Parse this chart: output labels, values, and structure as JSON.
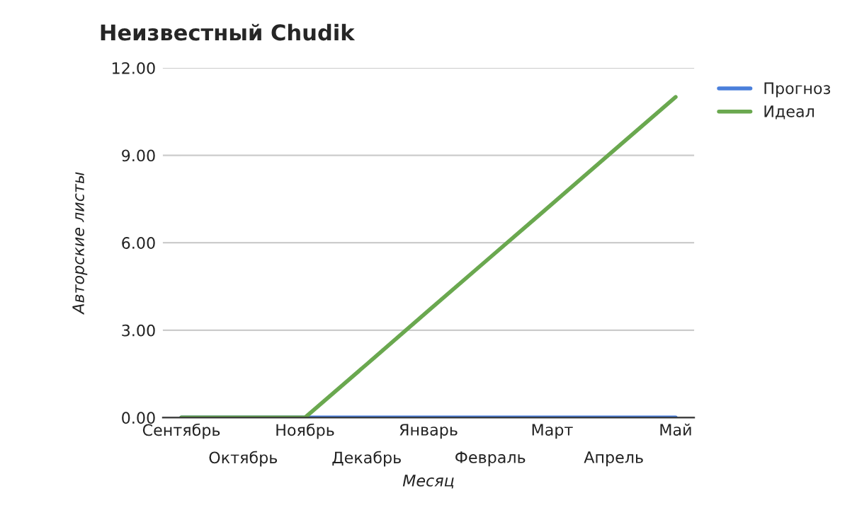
{
  "chart_data": {
    "type": "line",
    "title": "Неизвестный Chudik",
    "xlabel": "Месяц",
    "ylabel": "Авторские листы",
    "categories": [
      "Сентябрь",
      "Октябрь",
      "Ноябрь",
      "Декабрь",
      "Январь",
      "Февраль",
      "Март",
      "Апрель",
      "Май"
    ],
    "series": [
      {
        "name": "Прогноз",
        "color": "#4a7fdb",
        "values": [
          0,
          0,
          0,
          0,
          0,
          0,
          0,
          0,
          0
        ]
      },
      {
        "name": "Идеал",
        "color": "#6aa84f",
        "values": [
          0,
          0,
          0,
          1.83,
          3.67,
          5.5,
          7.33,
          9.17,
          11
        ]
      }
    ],
    "ylim": [
      0,
      12
    ],
    "yticks": [
      {
        "value": 0,
        "label": "0.00"
      },
      {
        "value": 3,
        "label": "3.00"
      },
      {
        "value": 6,
        "label": "6.00"
      },
      {
        "value": 9,
        "label": "9.00"
      },
      {
        "value": 12,
        "label": "12.00"
      }
    ],
    "grid": "y",
    "legend": "top right",
    "marker": "none",
    "line_style": "solid"
  }
}
